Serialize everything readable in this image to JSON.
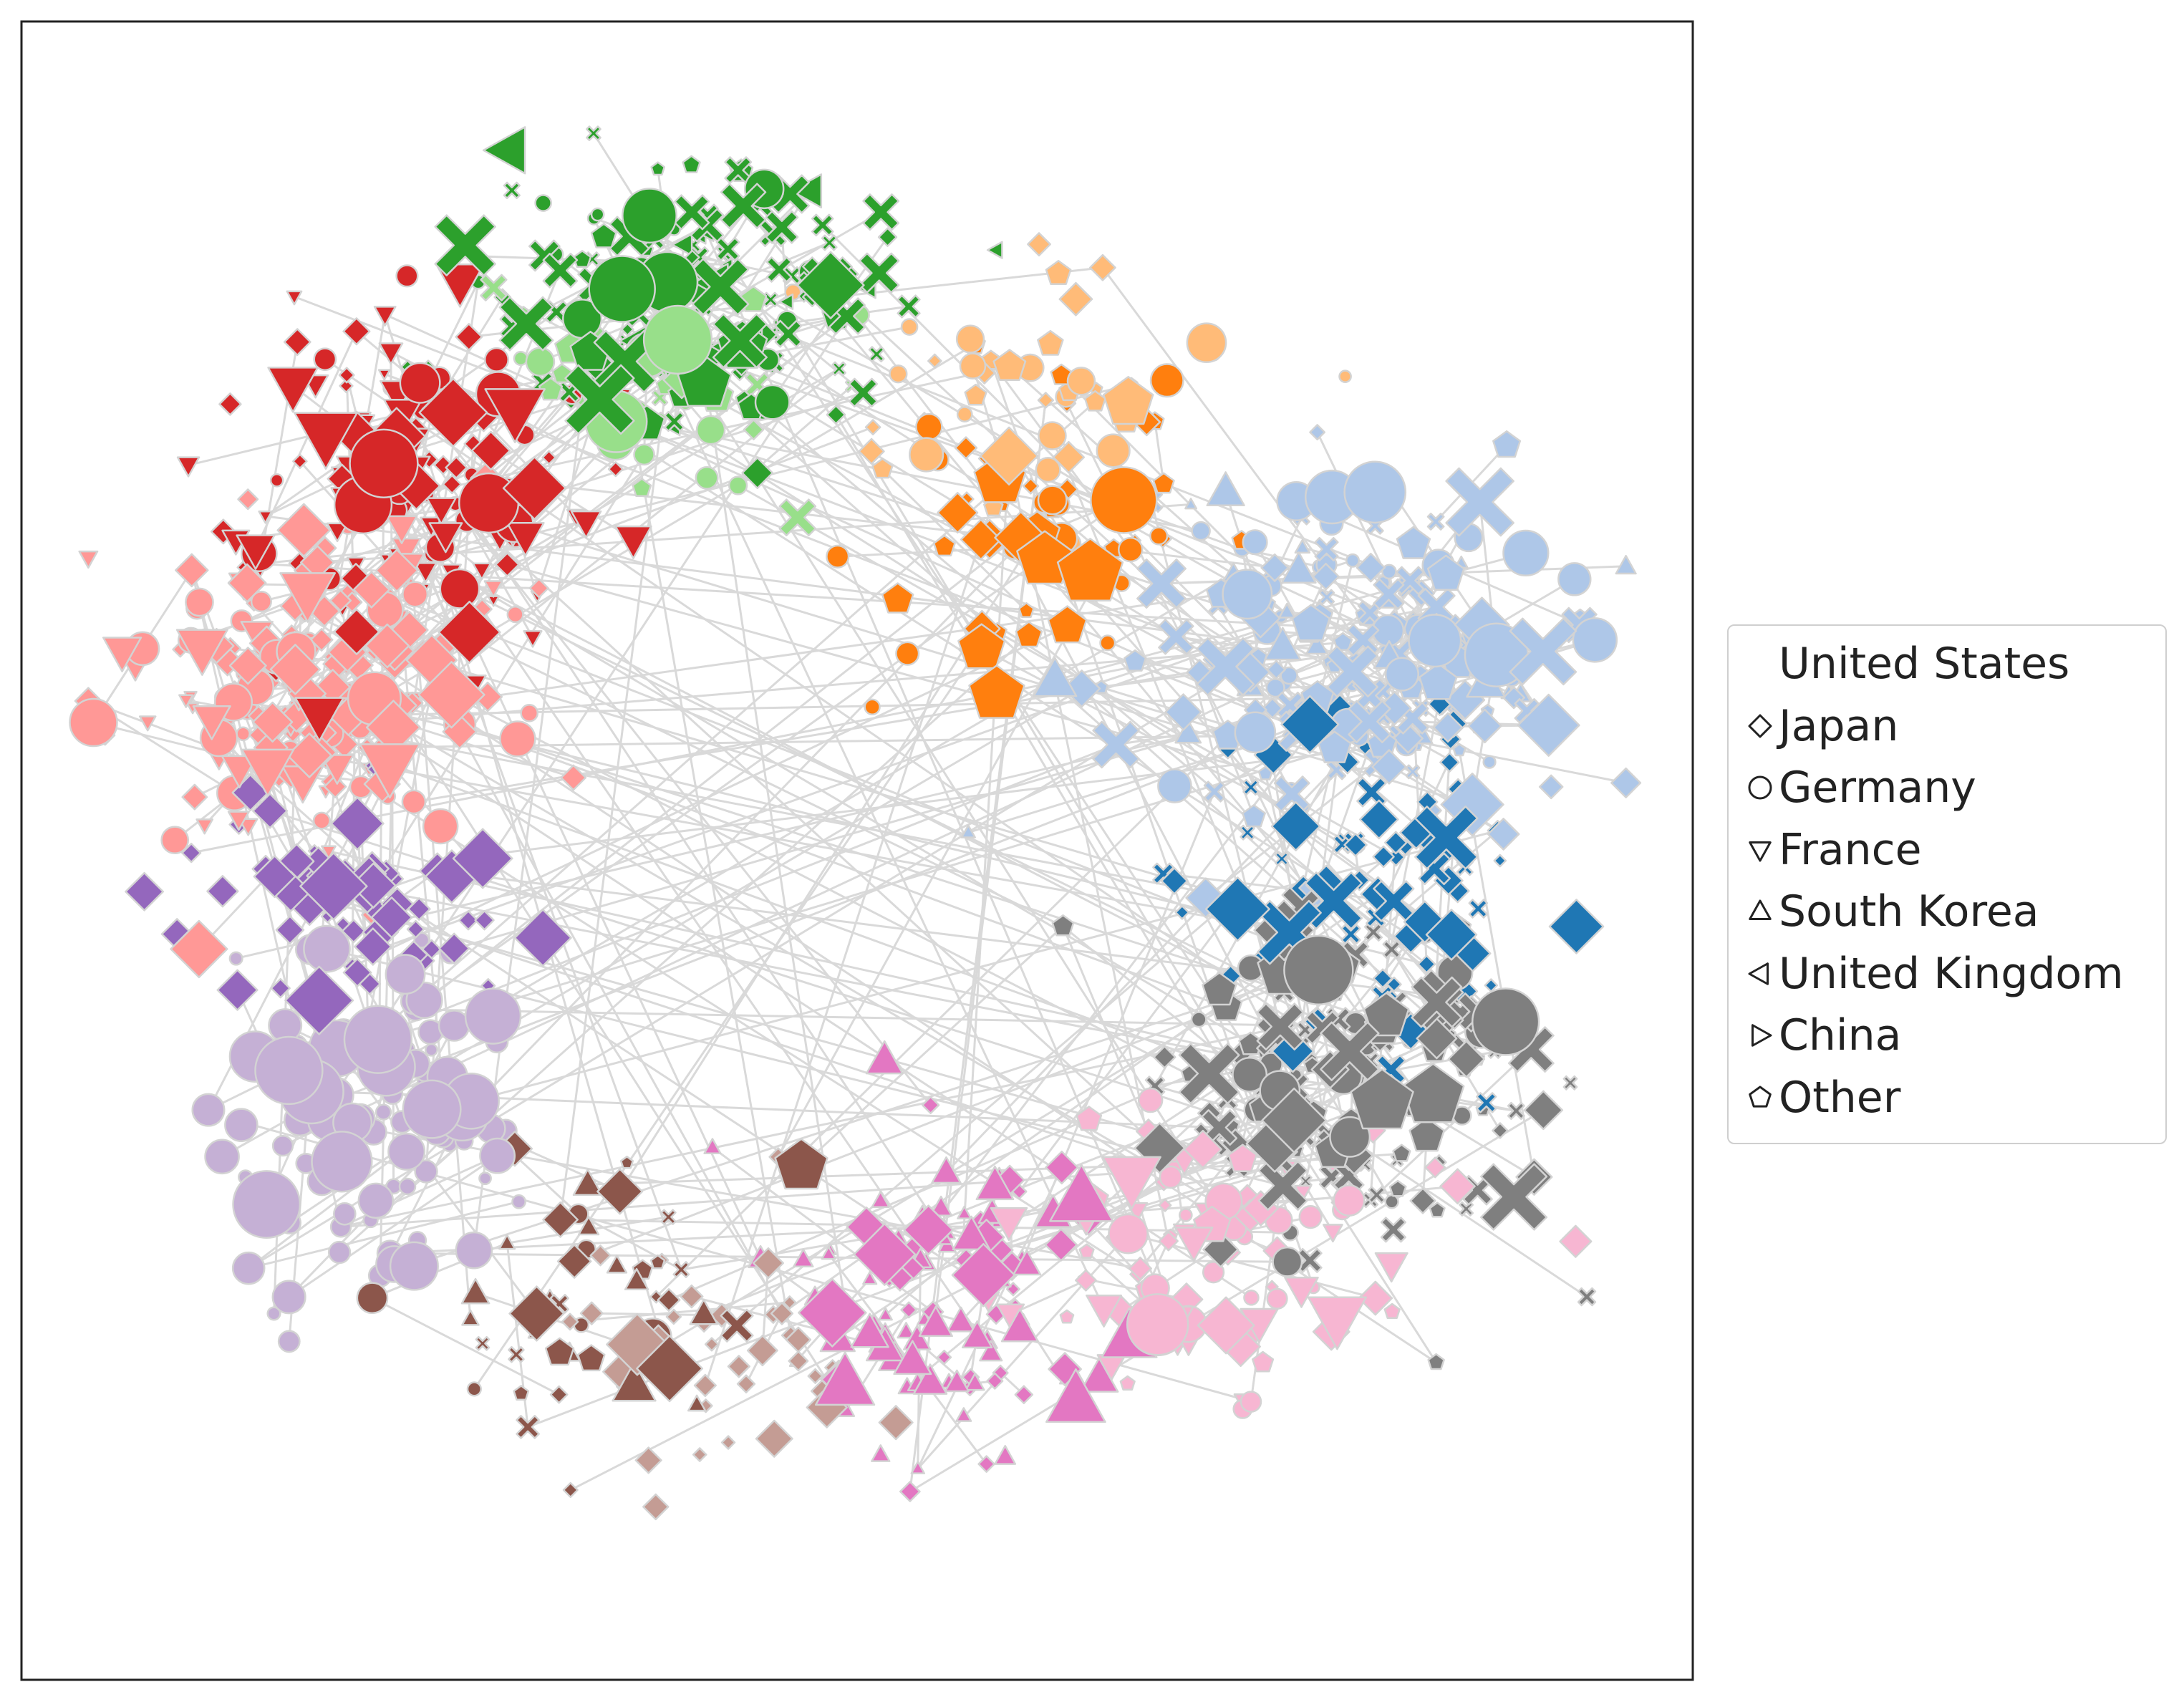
{
  "chart_data": {
    "type": "scatter",
    "subtype": "network-graph",
    "title": "",
    "xlabel": "",
    "ylabel": "",
    "axes_ticks": "none",
    "grid": false,
    "edge_color": "#d9d9d9",
    "legend": {
      "placement": "right, outside plot",
      "title": "",
      "entries": [
        {
          "label": "United States",
          "marker": "x-cross"
        },
        {
          "label": "Japan",
          "marker": "diamond"
        },
        {
          "label": "Germany",
          "marker": "circle"
        },
        {
          "label": "France",
          "marker": "triangle-down"
        },
        {
          "label": "South Korea",
          "marker": "triangle-up"
        },
        {
          "label": "United Kingdom",
          "marker": "triangle-left"
        },
        {
          "label": "China",
          "marker": "triangle-right"
        },
        {
          "label": "Other",
          "marker": "pentagon"
        }
      ]
    },
    "communities": [
      {
        "color": "#2ca02c",
        "center": [
          0.4,
          0.17
        ],
        "spread": [
          0.12,
          0.08
        ],
        "count": 150,
        "markers": [
          "cross",
          "cross",
          "cross",
          "diamond",
          "circle",
          "pentagon",
          "triangle-left"
        ]
      },
      {
        "color": "#98df8a",
        "center": [
          0.38,
          0.23
        ],
        "spread": [
          0.09,
          0.06
        ],
        "count": 45,
        "markers": [
          "circle",
          "diamond",
          "pentagon",
          "cross"
        ]
      },
      {
        "color": "#ff7f0e",
        "center": [
          0.62,
          0.31
        ],
        "spread": [
          0.11,
          0.09
        ],
        "count": 55,
        "markers": [
          "pentagon",
          "circle",
          "diamond"
        ]
      },
      {
        "color": "#ffbb78",
        "center": [
          0.6,
          0.22
        ],
        "spread": [
          0.1,
          0.09
        ],
        "count": 45,
        "markers": [
          "diamond",
          "pentagon",
          "circle"
        ]
      },
      {
        "color": "#aec7e8",
        "center": [
          0.8,
          0.38
        ],
        "spread": [
          0.11,
          0.09
        ],
        "count": 200,
        "markers": [
          "cross",
          "circle",
          "pentagon",
          "diamond",
          "triangle-up"
        ]
      },
      {
        "color": "#1f77b4",
        "center": [
          0.82,
          0.53
        ],
        "spread": [
          0.09,
          0.1
        ],
        "count": 75,
        "markers": [
          "diamond",
          "diamond",
          "cross"
        ]
      },
      {
        "color": "#7f7f7f",
        "center": [
          0.8,
          0.65
        ],
        "spread": [
          0.1,
          0.09
        ],
        "count": 170,
        "markers": [
          "cross",
          "cross",
          "diamond",
          "circle",
          "pentagon"
        ]
      },
      {
        "color": "#f7b6d2",
        "center": [
          0.72,
          0.74
        ],
        "spread": [
          0.1,
          0.07
        ],
        "count": 95,
        "markers": [
          "circle",
          "pentagon",
          "diamond",
          "triangle-down"
        ]
      },
      {
        "color": "#e377c2",
        "center": [
          0.56,
          0.76
        ],
        "spread": [
          0.09,
          0.08
        ],
        "count": 110,
        "markers": [
          "triangle-up",
          "triangle-up",
          "diamond"
        ]
      },
      {
        "color": "#c49c94",
        "center": [
          0.43,
          0.8
        ],
        "spread": [
          0.08,
          0.07
        ],
        "count": 40,
        "markers": [
          "diamond"
        ]
      },
      {
        "color": "#8c564b",
        "center": [
          0.34,
          0.77
        ],
        "spread": [
          0.08,
          0.08
        ],
        "count": 45,
        "markers": [
          "cross",
          "pentagon",
          "circle",
          "diamond",
          "triangle-up"
        ]
      },
      {
        "color": "#c5b0d5",
        "center": [
          0.21,
          0.66
        ],
        "spread": [
          0.08,
          0.09
        ],
        "count": 100,
        "markers": [
          "circle"
        ]
      },
      {
        "color": "#9467bd",
        "center": [
          0.19,
          0.53
        ],
        "spread": [
          0.08,
          0.07
        ],
        "count": 70,
        "markers": [
          "diamond"
        ]
      },
      {
        "color": "#ff9896",
        "center": [
          0.17,
          0.4
        ],
        "spread": [
          0.1,
          0.08
        ],
        "count": 200,
        "markers": [
          "diamond",
          "diamond",
          "circle",
          "triangle-down"
        ]
      },
      {
        "color": "#d62728",
        "center": [
          0.24,
          0.29
        ],
        "spread": [
          0.1,
          0.09
        ],
        "count": 140,
        "markers": [
          "triangle-down",
          "triangle-down",
          "circle",
          "diamond"
        ]
      }
    ],
    "inter_community_edges": 260
  }
}
